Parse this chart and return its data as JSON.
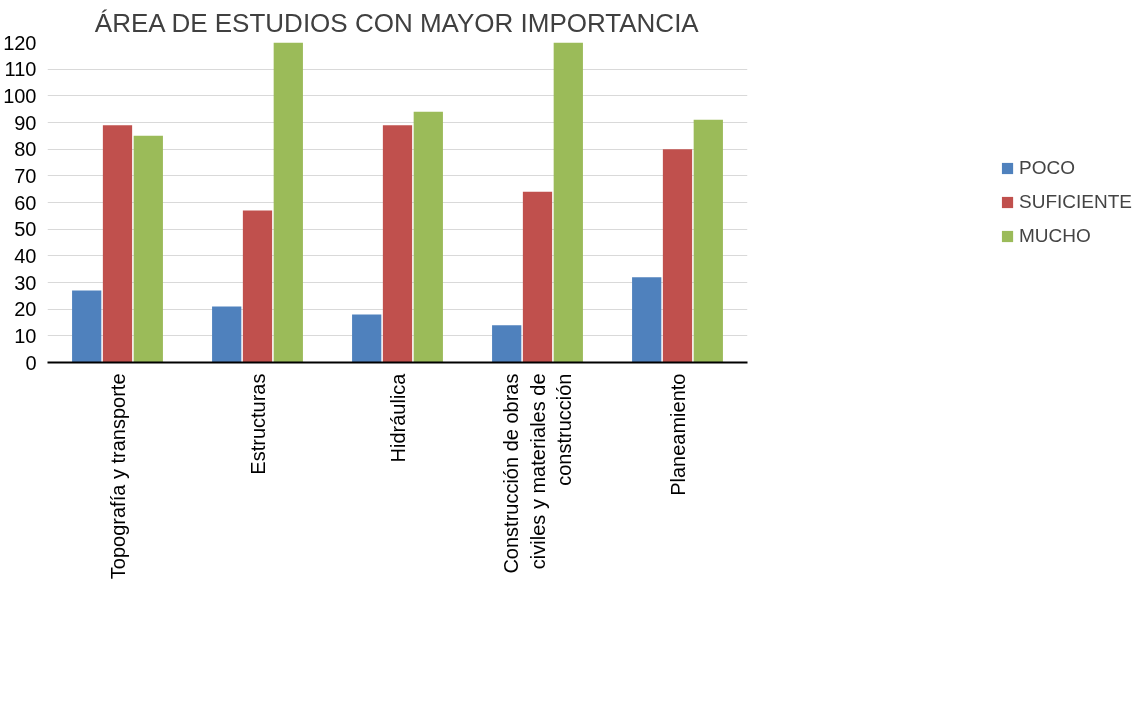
{
  "chart_data": {
    "type": "bar",
    "title": "ÁREA DE ESTUDIOS CON MAYOR IMPORTANCIA",
    "categories": [
      "Topografía y transporte",
      "Estructuras",
      "Hidráulica",
      "Construcción de obras civiles y materiales de construcción",
      "Planeamiento"
    ],
    "series": [
      {
        "name": "POCO",
        "color": "#4f81bd",
        "values": [
          27,
          21,
          18,
          14,
          32
        ]
      },
      {
        "name": "SUFICIENTE",
        "color": "#c0504d",
        "values": [
          89,
          57,
          89,
          64,
          80
        ]
      },
      {
        "name": "MUCHO",
        "color": "#9bbb59",
        "values": [
          85,
          120,
          94,
          120,
          91
        ]
      }
    ],
    "ylim": [
      0,
      120
    ],
    "yticks": [
      0,
      10,
      20,
      30,
      40,
      50,
      60,
      70,
      80,
      90,
      100,
      110,
      120
    ],
    "grid": "y",
    "legend": "right"
  }
}
